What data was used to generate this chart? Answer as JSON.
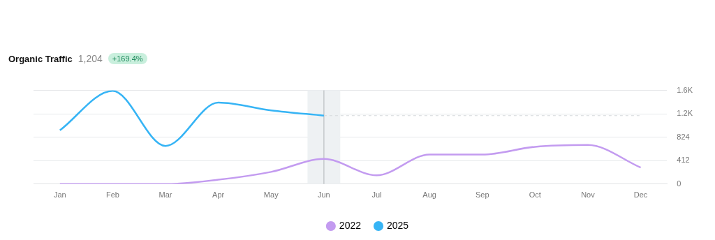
{
  "chart_data": {
    "type": "line",
    "title": "Organic Traffic",
    "subtitle": "1,204",
    "annotations": [
      "+169.4%"
    ],
    "categories": [
      "Jan",
      "Feb",
      "Mar",
      "Apr",
      "May",
      "Jun",
      "Jul",
      "Aug",
      "Sep",
      "Oct",
      "Nov",
      "Dec"
    ],
    "series": [
      {
        "name": "2022",
        "color": "#c39bf0",
        "values": [
          0,
          0,
          0,
          76,
          214,
          442,
          153,
          519,
          519,
          656,
          687,
          290
        ]
      },
      {
        "name": "2025",
        "color": "#36b4f5",
        "values": [
          946,
          1640,
          671,
          1434,
          1297,
          1204,
          null,
          null,
          null,
          null,
          null,
          null
        ]
      },
      {
        "type": "line",
        "color": "#d5d8db",
        "line_style": "dashed",
        "values": [
          null,
          null,
          null,
          null,
          null,
          1204,
          1204,
          1204,
          1204,
          1204,
          1204,
          1204
        ]
      }
    ],
    "ylim": [
      0,
      1648
    ],
    "yticks": [
      0,
      412,
      824,
      {
        "value": 1236,
        "label": "1.2K"
      },
      {
        "value": 1648,
        "label": "1.6K"
      }
    ],
    "ref_lines": [
      {
        "axis": "x",
        "value": "Jun",
        "color": "#c4c7ca"
      }
    ],
    "bands": [
      {
        "axis": "x",
        "from": "Jun",
        "to": "Jun",
        "color": "#eef1f3"
      }
    ],
    "grid": "y",
    "legend": "bottom",
    "marker": "none",
    "line_style": "solid"
  }
}
